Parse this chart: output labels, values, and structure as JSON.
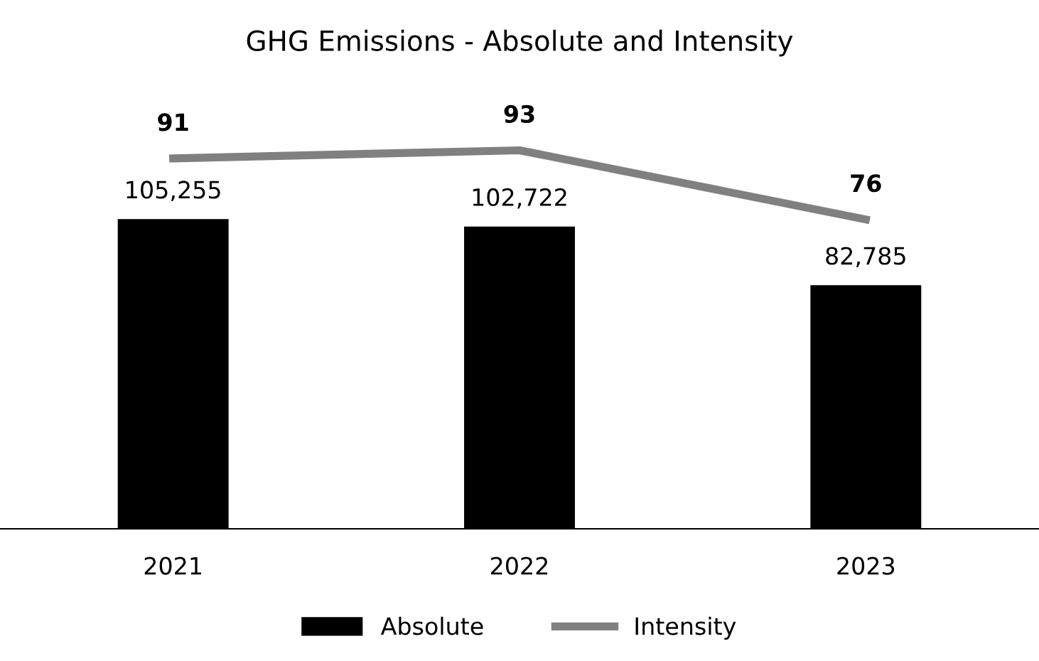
{
  "chart_data": {
    "type": "bar",
    "title": "GHG Emissions - Absolute and Intensity",
    "categories": [
      "2021",
      "2022",
      "2023"
    ],
    "series": [
      {
        "name": "Absolute",
        "color": "#000000",
        "values": [
          105255,
          102722,
          82785
        ],
        "value_labels": [
          "105,255",
          "102,722",
          "82,785"
        ]
      },
      {
        "name": "Intensity",
        "type": "line",
        "axis": "y2",
        "color": "#808080",
        "values": [
          91,
          93,
          76
        ]
      }
    ],
    "data_labels": true,
    "legend": "bottom",
    "grid": false,
    "tick_labels": "x",
    "marker": "none"
  }
}
